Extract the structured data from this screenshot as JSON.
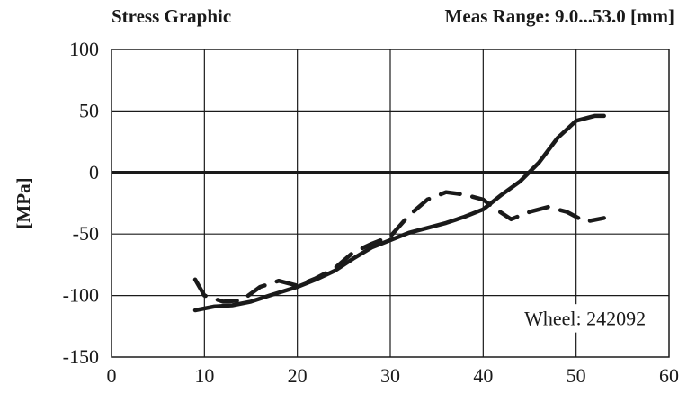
{
  "chart_data": {
    "type": "line",
    "title": "Stress Graphic",
    "subtitle": "Meas Range: 9.0...53.0 [mm]",
    "ylabel": "[MPa]",
    "xlabel": "",
    "xlim": [
      0,
      60
    ],
    "ylim": [
      -150,
      100
    ],
    "xticks": [
      "0",
      "10",
      "20",
      "30",
      "40",
      "50",
      "60"
    ],
    "yticks": [
      "100",
      "50",
      "0",
      "-50",
      "-100",
      "-150"
    ],
    "grid": true,
    "annotation": "Wheel: 242092",
    "series": [
      {
        "style": "solid",
        "x": [
          9,
          11,
          13,
          15,
          17,
          20,
          22,
          24,
          26,
          28,
          30,
          32,
          34,
          36,
          38,
          40,
          42,
          44,
          46,
          48,
          50,
          52,
          53
        ],
        "y": [
          -112,
          -109,
          -108,
          -105,
          -100,
          -93,
          -87,
          -80,
          -70,
          -61,
          -55,
          -49,
          -45,
          -41,
          -36,
          -30,
          -18,
          -7,
          8,
          28,
          42,
          46,
          46
        ]
      },
      {
        "style": "dashed",
        "x": [
          9,
          10,
          12,
          14,
          16,
          18,
          20,
          22,
          24,
          26,
          28,
          30,
          32,
          34,
          36,
          38,
          40,
          41,
          43,
          45,
          47,
          49,
          51,
          53
        ],
        "y": [
          -87,
          -100,
          -105,
          -104,
          -93,
          -88,
          -92,
          -86,
          -78,
          -65,
          -58,
          -52,
          -35,
          -22,
          -16,
          -18,
          -22,
          -28,
          -38,
          -32,
          -28,
          -32,
          -40,
          -37
        ]
      }
    ]
  }
}
